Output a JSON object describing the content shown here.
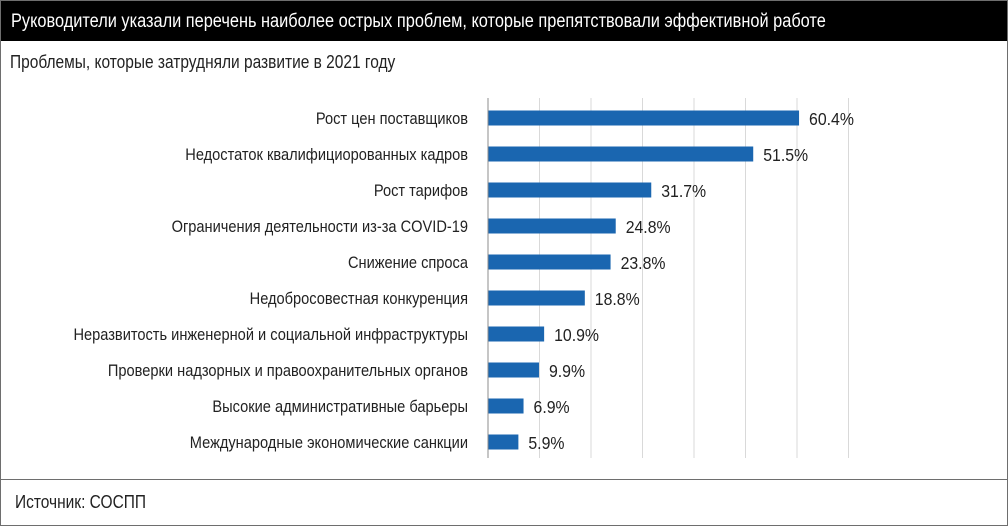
{
  "header": {
    "title": "Руководители указали перечень наиболее острых проблем, которые препятствовали эффективной работе"
  },
  "subtitle": "Проблемы, которые  затрудняли развитие в 2021 году",
  "source": "Источник: СОСПП",
  "colors": {
    "bar": "#1a66b0",
    "grid": "#d9d9d9",
    "axis": "#8c8c8c",
    "header_bg": "#000000"
  },
  "chart_data": {
    "type": "bar",
    "orientation": "horizontal",
    "title": "Проблемы, которые  затрудняли развитие в 2021 году",
    "unit": "%",
    "xlim": [
      0,
      70
    ],
    "grid": true,
    "categories": [
      "Рост цен поставщиков",
      "Недостаток квалифициорованных кадров",
      "Рост тарифов",
      "Ограничения деятельности из-за COVID-19",
      "Снижение спроса",
      "Недобросовестная конкуренция",
      "Неразвитость инженерной и социальной инфраструктуры",
      "Проверки надзорных и правоохранительных органов",
      "Высокие административные барьеры",
      "Международные экономические санкции"
    ],
    "values": [
      60.4,
      51.5,
      31.7,
      24.8,
      23.8,
      18.8,
      10.9,
      9.9,
      6.9,
      5.9
    ],
    "value_labels": [
      "60.4%",
      "51.5%",
      "31.7%",
      "24.8%",
      "23.8%",
      "18.8%",
      "10.9%",
      "9.9%",
      "6.9%",
      "5.9%"
    ]
  }
}
